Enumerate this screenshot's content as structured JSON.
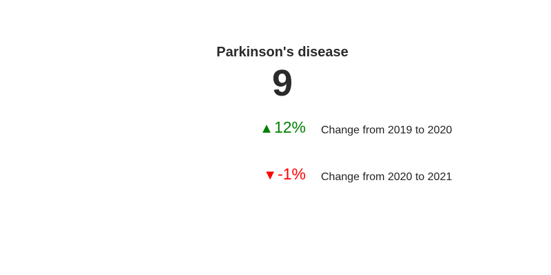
{
  "card": {
    "title": "Parkinson's disease",
    "value": "9",
    "changes": [
      {
        "arrow": "▲",
        "percent": "12%",
        "label": "Change from 2019 to 2020",
        "color": "#008000"
      },
      {
        "arrow": "▼",
        "percent": "-1%",
        "label": "Change from 2020 to 2021",
        "color": "#ff0000"
      }
    ]
  }
}
